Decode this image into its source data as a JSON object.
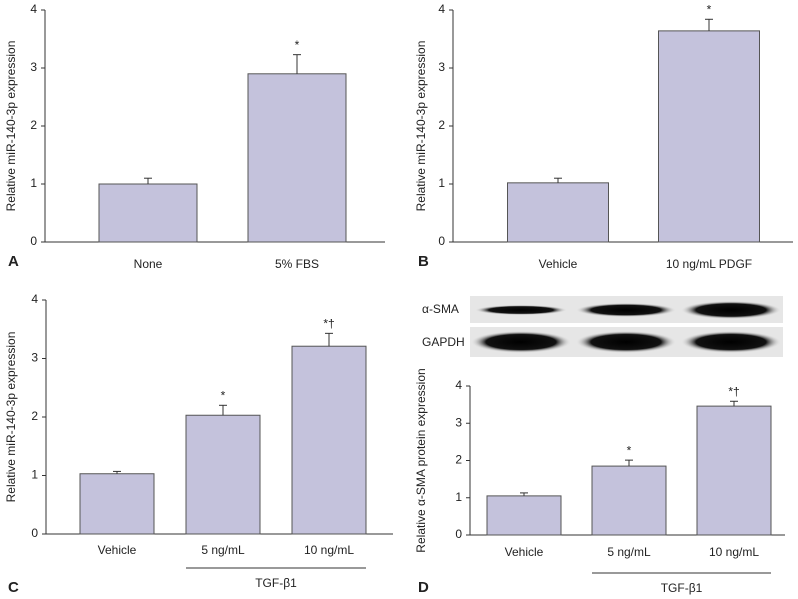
{
  "chart_data": [
    {
      "type": "bar",
      "panel": "A",
      "ylabel": "Relative miR-140-3p expression",
      "categories": [
        "None",
        "5% FBS"
      ],
      "values": [
        1.0,
        2.9
      ],
      "errors": [
        0.1,
        0.33
      ],
      "annotations": [
        null,
        "*"
      ],
      "color": "#c4c2dc",
      "ylim": [
        0,
        4
      ],
      "yticks": [
        0,
        1,
        2,
        3,
        4
      ]
    },
    {
      "type": "bar",
      "panel": "B",
      "ylabel": "Relative miR-140-3p expression",
      "categories": [
        "Vehicle",
        "10 ng/mL PDGF"
      ],
      "values": [
        1.02,
        3.64
      ],
      "errors": [
        0.08,
        0.2
      ],
      "annotations": [
        null,
        "*"
      ],
      "color": "#c4c2dc",
      "ylim": [
        0,
        4
      ],
      "yticks": [
        0,
        1,
        2,
        3,
        4
      ]
    },
    {
      "type": "bar",
      "panel": "C",
      "ylabel": "Relative miR-140-3p expression",
      "categories": [
        "Vehicle",
        "5 ng/mL",
        "10 ng/mL"
      ],
      "values": [
        1.03,
        2.03,
        3.21
      ],
      "errors": [
        0.04,
        0.17,
        0.22
      ],
      "annotations": [
        null,
        "*",
        "*†"
      ],
      "group_label": "TGF-β1",
      "color": "#c4c2dc",
      "ylim": [
        0,
        4
      ],
      "yticks": [
        0,
        1,
        2,
        3,
        4
      ]
    },
    {
      "type": "bar",
      "panel": "D",
      "ylabel": "Relative α-SMA  protein expression",
      "categories": [
        "Vehicle",
        "5 ng/mL",
        "10 ng/mL"
      ],
      "values": [
        1.05,
        1.85,
        3.46
      ],
      "errors": [
        0.08,
        0.16,
        0.13
      ],
      "annotations": [
        null,
        "*",
        "*†"
      ],
      "group_label": "TGF-β1",
      "blot_labels": [
        "α-SMA",
        "GAPDH"
      ],
      "color": "#c4c2dc",
      "ylim": [
        0,
        4
      ],
      "yticks": [
        0,
        1,
        2,
        3,
        4
      ]
    }
  ]
}
